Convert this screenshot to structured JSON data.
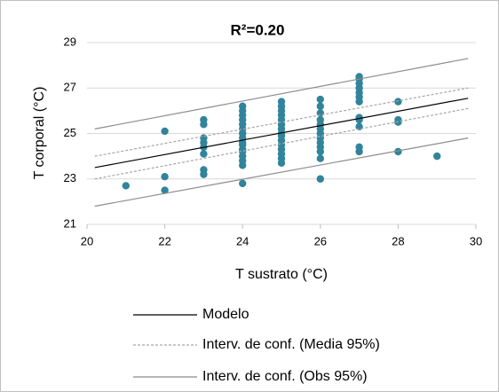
{
  "chart_data": {
    "type": "scatter",
    "title": "R²=0.20",
    "x_label": "T sustrato (°C)",
    "y_label": "T corporal (°C)",
    "xlim": [
      20,
      30
    ],
    "ylim": [
      21,
      29
    ],
    "xticks": [
      20,
      22,
      24,
      26,
      28,
      30
    ],
    "yticks": [
      21,
      23,
      25,
      27,
      29
    ],
    "grid": true,
    "points": {
      "color": "#31849b",
      "x": [
        21,
        22,
        22,
        22,
        23,
        23,
        23,
        23,
        23,
        23,
        23,
        23,
        24,
        24,
        24,
        24,
        24,
        24,
        24,
        24,
        24,
        24,
        24,
        24,
        24,
        24,
        24,
        24,
        25,
        25,
        25,
        25,
        25,
        25,
        25,
        25,
        25,
        25,
        25,
        25,
        25,
        25,
        25,
        26,
        26,
        26,
        26,
        26,
        26,
        26,
        26,
        26,
        26,
        26,
        26,
        26,
        27,
        27,
        27,
        27,
        27,
        27,
        27,
        27,
        27,
        27,
        27,
        27,
        28,
        28,
        28,
        28,
        29
      ],
      "values": [
        22.7,
        25.1,
        23.1,
        22.5,
        25.6,
        25.4,
        24.8,
        24.6,
        24.4,
        24.1,
        23.4,
        23.2,
        22.8,
        23.6,
        23.8,
        24.0,
        24.2,
        24.3,
        24.5,
        24.6,
        24.8,
        25.0,
        25.2,
        25.4,
        25.6,
        25.8,
        26.0,
        26.2,
        23.7,
        23.9,
        24.1,
        24.3,
        24.5,
        24.7,
        24.9,
        25.0,
        25.2,
        25.4,
        25.6,
        25.8,
        26.0,
        26.2,
        26.4,
        23.0,
        23.9,
        24.2,
        24.4,
        24.6,
        24.8,
        25.0,
        25.2,
        25.4,
        25.6,
        25.9,
        26.2,
        26.5,
        24.2,
        24.4,
        25.3,
        25.6,
        25.7,
        26.4,
        26.6,
        26.8,
        27.0,
        27.2,
        27.4,
        27.5,
        26.4,
        25.6,
        25.5,
        24.2,
        24.0
      ]
    },
    "series": [
      {
        "name": "Modelo",
        "color": "#000000",
        "dash": "none",
        "x": [
          20.2,
          29.8
        ],
        "values": [
          23.5,
          26.55
        ]
      },
      {
        "name": "Interv. de conf. (Media 95%)",
        "color": "#a6a6a6",
        "dash": "3 2",
        "x": [
          20.2,
          29.8
        ],
        "upper": [
          24.0,
          27.0
        ],
        "lower": [
          23.0,
          26.1
        ]
      },
      {
        "name": "Interv. de conf. (Obs 95%)",
        "color": "#8c8c8c",
        "dash": "none",
        "x": [
          20.2,
          29.8
        ],
        "upper": [
          25.2,
          28.3
        ],
        "lower": [
          21.8,
          24.8
        ]
      }
    ]
  }
}
